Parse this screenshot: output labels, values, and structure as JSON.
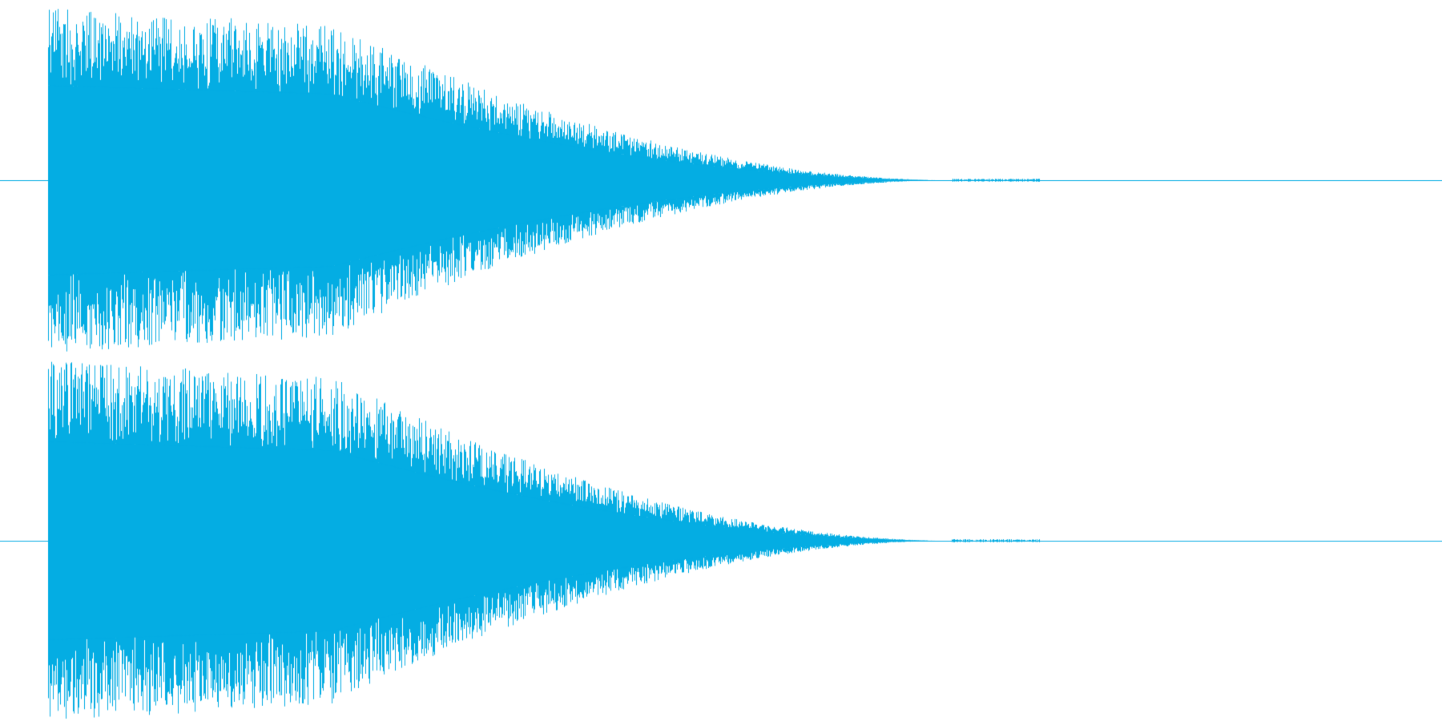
{
  "waveform": {
    "color": "#04ADE3",
    "background": "#ffffff",
    "channels": [
      {
        "name": "",
        "envelope": {
          "onset_fraction": 0.0333,
          "sustain_until_fraction": 0.23,
          "decay_end_fraction": 0.66,
          "peak_level": 1.0,
          "sustain_level": 0.85,
          "tail_level": 0.0
        }
      },
      {
        "name": "",
        "envelope": {
          "onset_fraction": 0.0333,
          "sustain_until_fraction": 0.23,
          "decay_end_fraction": 0.66,
          "peak_level": 1.0,
          "sustain_level": 0.85,
          "tail_level": 0.0
        }
      }
    ]
  }
}
